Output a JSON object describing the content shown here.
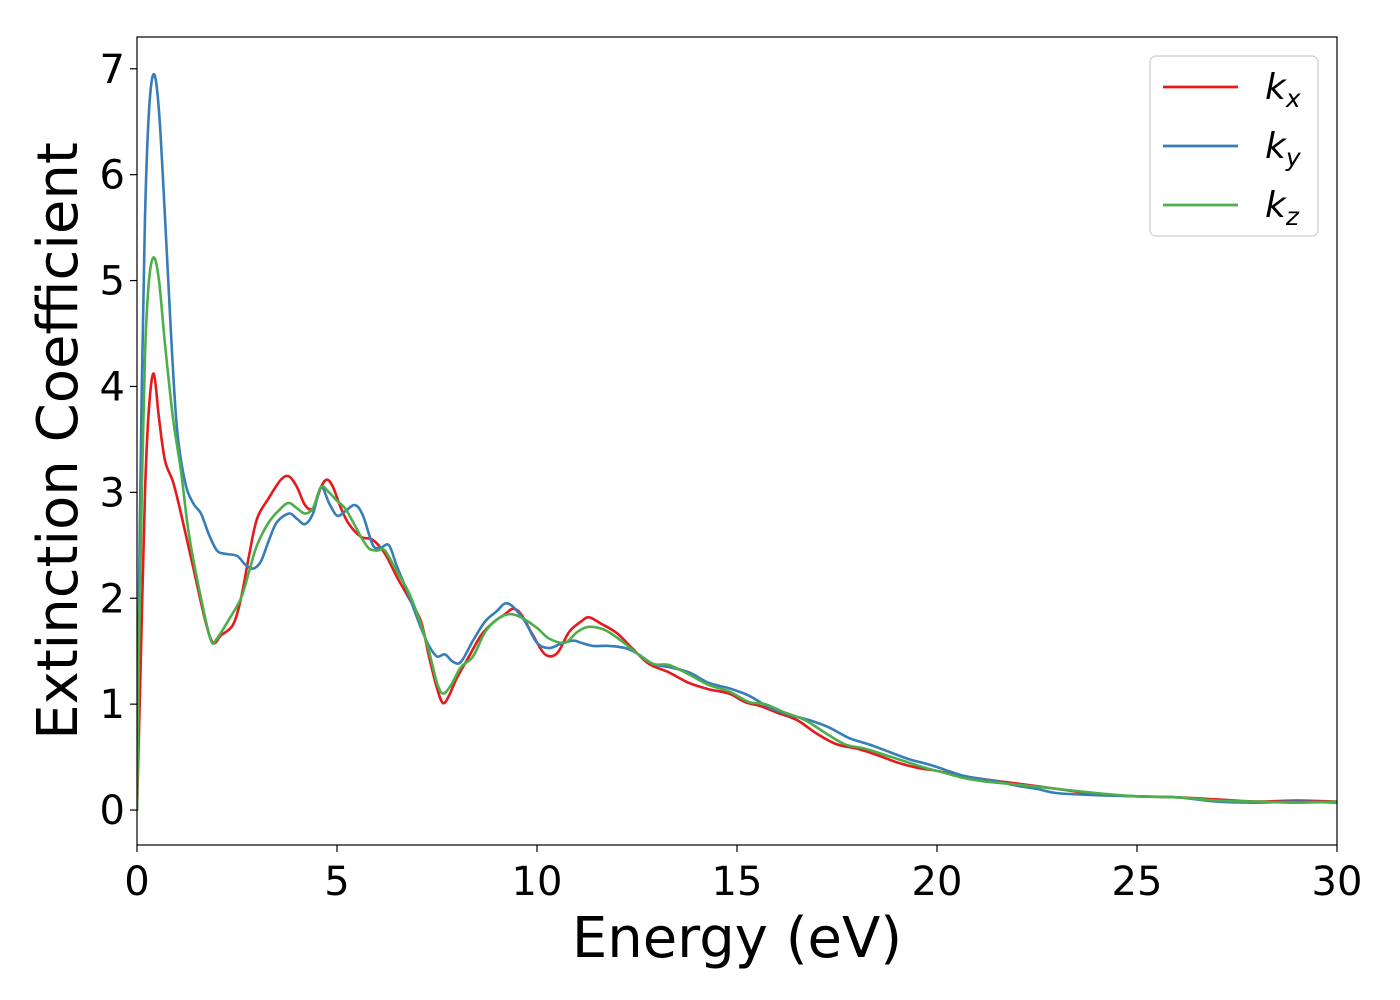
{
  "chart_data": {
    "type": "line",
    "xlabel": "Energy (eV)",
    "ylabel": "Extinction Coefficient",
    "xlim": [
      0,
      30
    ],
    "ylim": [
      -0.33,
      7.3
    ],
    "xticks": [
      0,
      5,
      10,
      15,
      20,
      25,
      30
    ],
    "yticks": [
      0,
      1,
      2,
      3,
      4,
      5,
      6,
      7
    ],
    "grid": false,
    "legend_position": "top-right",
    "series": [
      {
        "name": "k",
        "subscript": "x",
        "color": "#e41a1c",
        "points": [
          [
            0,
            0
          ],
          [
            0.1,
            1.5
          ],
          [
            0.2,
            3.0
          ],
          [
            0.3,
            3.8
          ],
          [
            0.42,
            4.12
          ],
          [
            0.55,
            3.7
          ],
          [
            0.7,
            3.3
          ],
          [
            0.9,
            3.1
          ],
          [
            1.1,
            2.8
          ],
          [
            1.4,
            2.3
          ],
          [
            1.7,
            1.8
          ],
          [
            1.9,
            1.58
          ],
          [
            2.1,
            1.65
          ],
          [
            2.4,
            1.75
          ],
          [
            2.6,
            2.0
          ],
          [
            2.8,
            2.4
          ],
          [
            3.0,
            2.75
          ],
          [
            3.3,
            2.95
          ],
          [
            3.6,
            3.12
          ],
          [
            3.8,
            3.15
          ],
          [
            4.0,
            3.05
          ],
          [
            4.2,
            2.88
          ],
          [
            4.4,
            2.85
          ],
          [
            4.6,
            3.05
          ],
          [
            4.75,
            3.12
          ],
          [
            4.9,
            3.05
          ],
          [
            5.1,
            2.85
          ],
          [
            5.3,
            2.7
          ],
          [
            5.6,
            2.58
          ],
          [
            5.9,
            2.55
          ],
          [
            6.2,
            2.42
          ],
          [
            6.5,
            2.2
          ],
          [
            6.8,
            2.0
          ],
          [
            7.1,
            1.78
          ],
          [
            7.3,
            1.45
          ],
          [
            7.5,
            1.15
          ],
          [
            7.65,
            1.01
          ],
          [
            7.8,
            1.08
          ],
          [
            8.0,
            1.25
          ],
          [
            8.3,
            1.45
          ],
          [
            8.6,
            1.65
          ],
          [
            8.9,
            1.77
          ],
          [
            9.2,
            1.85
          ],
          [
            9.4,
            1.9
          ],
          [
            9.6,
            1.85
          ],
          [
            9.9,
            1.65
          ],
          [
            10.2,
            1.47
          ],
          [
            10.5,
            1.48
          ],
          [
            10.8,
            1.68
          ],
          [
            11.1,
            1.78
          ],
          [
            11.3,
            1.82
          ],
          [
            11.6,
            1.76
          ],
          [
            12.0,
            1.67
          ],
          [
            12.4,
            1.52
          ],
          [
            12.8,
            1.38
          ],
          [
            13.3,
            1.3
          ],
          [
            13.8,
            1.2
          ],
          [
            14.3,
            1.14
          ],
          [
            14.8,
            1.1
          ],
          [
            15.2,
            1.02
          ],
          [
            15.6,
            0.98
          ],
          [
            16.0,
            0.92
          ],
          [
            16.5,
            0.85
          ],
          [
            17.0,
            0.72
          ],
          [
            17.5,
            0.62
          ],
          [
            18.0,
            0.58
          ],
          [
            18.5,
            0.52
          ],
          [
            19.0,
            0.45
          ],
          [
            19.5,
            0.4
          ],
          [
            20.0,
            0.37
          ],
          [
            20.5,
            0.33
          ],
          [
            21.0,
            0.3
          ],
          [
            22.0,
            0.25
          ],
          [
            23.0,
            0.2
          ],
          [
            24.0,
            0.15
          ],
          [
            25.0,
            0.13
          ],
          [
            26.0,
            0.12
          ],
          [
            27.0,
            0.1
          ],
          [
            28.0,
            0.08
          ],
          [
            29.0,
            0.09
          ],
          [
            30.0,
            0.08
          ]
        ]
      },
      {
        "name": "k",
        "subscript": "y",
        "color": "#377eb8",
        "points": [
          [
            0,
            0
          ],
          [
            0.05,
            2.0
          ],
          [
            0.12,
            4.0
          ],
          [
            0.2,
            5.6
          ],
          [
            0.3,
            6.6
          ],
          [
            0.42,
            6.95
          ],
          [
            0.55,
            6.6
          ],
          [
            0.7,
            5.6
          ],
          [
            0.85,
            4.5
          ],
          [
            1.0,
            3.6
          ],
          [
            1.2,
            3.1
          ],
          [
            1.4,
            2.9
          ],
          [
            1.6,
            2.8
          ],
          [
            1.8,
            2.6
          ],
          [
            2.0,
            2.45
          ],
          [
            2.2,
            2.42
          ],
          [
            2.5,
            2.4
          ],
          [
            2.7,
            2.32
          ],
          [
            2.9,
            2.28
          ],
          [
            3.1,
            2.35
          ],
          [
            3.3,
            2.55
          ],
          [
            3.5,
            2.72
          ],
          [
            3.8,
            2.8
          ],
          [
            4.0,
            2.75
          ],
          [
            4.2,
            2.7
          ],
          [
            4.4,
            2.8
          ],
          [
            4.6,
            3.05
          ],
          [
            4.8,
            2.9
          ],
          [
            5.0,
            2.78
          ],
          [
            5.2,
            2.82
          ],
          [
            5.45,
            2.88
          ],
          [
            5.65,
            2.78
          ],
          [
            5.9,
            2.5
          ],
          [
            6.1,
            2.48
          ],
          [
            6.3,
            2.5
          ],
          [
            6.5,
            2.3
          ],
          [
            6.8,
            2.02
          ],
          [
            7.1,
            1.72
          ],
          [
            7.3,
            1.55
          ],
          [
            7.5,
            1.45
          ],
          [
            7.7,
            1.47
          ],
          [
            7.9,
            1.4
          ],
          [
            8.1,
            1.4
          ],
          [
            8.4,
            1.6
          ],
          [
            8.7,
            1.78
          ],
          [
            9.0,
            1.88
          ],
          [
            9.2,
            1.95
          ],
          [
            9.4,
            1.92
          ],
          [
            9.7,
            1.78
          ],
          [
            10.0,
            1.58
          ],
          [
            10.3,
            1.53
          ],
          [
            10.6,
            1.57
          ],
          [
            10.9,
            1.6
          ],
          [
            11.1,
            1.58
          ],
          [
            11.4,
            1.55
          ],
          [
            11.8,
            1.55
          ],
          [
            12.2,
            1.53
          ],
          [
            12.5,
            1.48
          ],
          [
            12.9,
            1.38
          ],
          [
            13.3,
            1.35
          ],
          [
            13.8,
            1.3
          ],
          [
            14.3,
            1.2
          ],
          [
            14.8,
            1.15
          ],
          [
            15.3,
            1.08
          ],
          [
            15.8,
            0.97
          ],
          [
            16.3,
            0.9
          ],
          [
            16.8,
            0.85
          ],
          [
            17.3,
            0.78
          ],
          [
            17.8,
            0.68
          ],
          [
            18.3,
            0.62
          ],
          [
            18.8,
            0.55
          ],
          [
            19.3,
            0.48
          ],
          [
            19.8,
            0.43
          ],
          [
            20.2,
            0.38
          ],
          [
            20.6,
            0.33
          ],
          [
            21.0,
            0.3
          ],
          [
            21.5,
            0.27
          ],
          [
            22.0,
            0.23
          ],
          [
            22.5,
            0.2
          ],
          [
            23.0,
            0.16
          ],
          [
            24.0,
            0.14
          ],
          [
            25.0,
            0.13
          ],
          [
            26.0,
            0.12
          ],
          [
            27.0,
            0.08
          ],
          [
            28.0,
            0.07
          ],
          [
            29.0,
            0.08
          ],
          [
            30.0,
            0.07
          ]
        ]
      },
      {
        "name": "k",
        "subscript": "z",
        "color": "#4daf4a",
        "points": [
          [
            0,
            0
          ],
          [
            0.05,
            1.5
          ],
          [
            0.12,
            3.0
          ],
          [
            0.2,
            4.3
          ],
          [
            0.3,
            5.0
          ],
          [
            0.42,
            5.22
          ],
          [
            0.55,
            5.0
          ],
          [
            0.7,
            4.4
          ],
          [
            0.9,
            3.7
          ],
          [
            1.1,
            3.2
          ],
          [
            1.3,
            2.6
          ],
          [
            1.6,
            2.0
          ],
          [
            1.85,
            1.6
          ],
          [
            2.0,
            1.62
          ],
          [
            2.3,
            1.8
          ],
          [
            2.6,
            2.0
          ],
          [
            2.8,
            2.25
          ],
          [
            3.0,
            2.5
          ],
          [
            3.3,
            2.72
          ],
          [
            3.6,
            2.85
          ],
          [
            3.8,
            2.9
          ],
          [
            4.0,
            2.85
          ],
          [
            4.2,
            2.8
          ],
          [
            4.4,
            2.85
          ],
          [
            4.6,
            3.05
          ],
          [
            4.8,
            3.0
          ],
          [
            5.0,
            2.92
          ],
          [
            5.2,
            2.85
          ],
          [
            5.4,
            2.72
          ],
          [
            5.6,
            2.58
          ],
          [
            5.8,
            2.47
          ],
          [
            6.0,
            2.45
          ],
          [
            6.2,
            2.45
          ],
          [
            6.5,
            2.25
          ],
          [
            6.8,
            2.05
          ],
          [
            7.1,
            1.75
          ],
          [
            7.3,
            1.5
          ],
          [
            7.5,
            1.2
          ],
          [
            7.65,
            1.1
          ],
          [
            7.85,
            1.18
          ],
          [
            8.1,
            1.35
          ],
          [
            8.4,
            1.45
          ],
          [
            8.7,
            1.68
          ],
          [
            9.0,
            1.8
          ],
          [
            9.3,
            1.85
          ],
          [
            9.6,
            1.82
          ],
          [
            10.0,
            1.72
          ],
          [
            10.3,
            1.62
          ],
          [
            10.7,
            1.58
          ],
          [
            11.0,
            1.68
          ],
          [
            11.3,
            1.73
          ],
          [
            11.7,
            1.7
          ],
          [
            12.1,
            1.6
          ],
          [
            12.5,
            1.48
          ],
          [
            12.9,
            1.38
          ],
          [
            13.3,
            1.37
          ],
          [
            13.8,
            1.28
          ],
          [
            14.3,
            1.18
          ],
          [
            14.8,
            1.12
          ],
          [
            15.3,
            1.02
          ],
          [
            15.7,
            1.0
          ],
          [
            16.2,
            0.92
          ],
          [
            16.7,
            0.85
          ],
          [
            17.2,
            0.73
          ],
          [
            17.7,
            0.62
          ],
          [
            18.2,
            0.58
          ],
          [
            18.7,
            0.52
          ],
          [
            19.2,
            0.46
          ],
          [
            19.7,
            0.4
          ],
          [
            20.2,
            0.35
          ],
          [
            20.7,
            0.3
          ],
          [
            21.2,
            0.27
          ],
          [
            22.0,
            0.24
          ],
          [
            23.0,
            0.2
          ],
          [
            24.0,
            0.16
          ],
          [
            25.0,
            0.13
          ],
          [
            26.0,
            0.12
          ],
          [
            27.0,
            0.09
          ],
          [
            28.0,
            0.08
          ],
          [
            29.0,
            0.07
          ],
          [
            30.0,
            0.08
          ]
        ]
      }
    ]
  }
}
